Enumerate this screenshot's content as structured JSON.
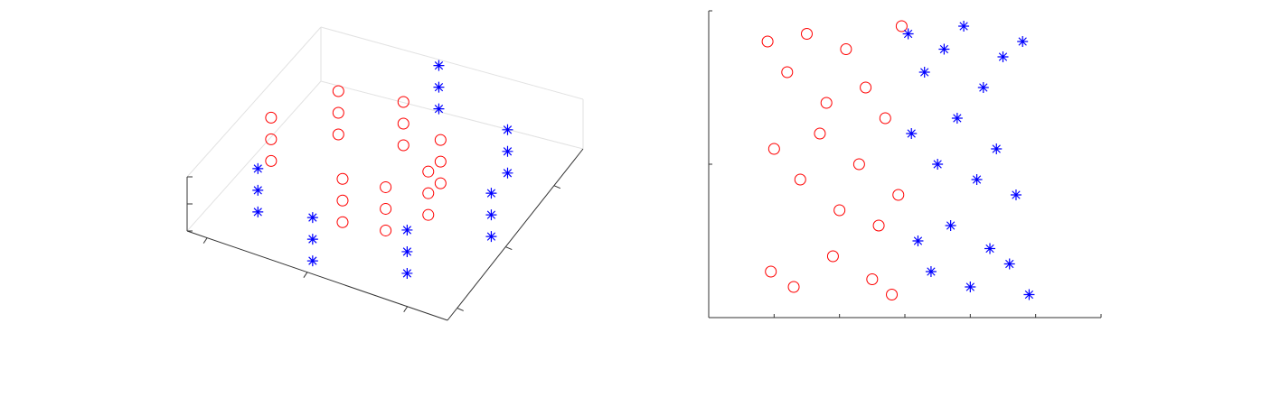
{
  "chart_data": [
    {
      "type": "scatter3d",
      "xlim": [
        -12,
        14
      ],
      "ylim": [
        0,
        20
      ],
      "zlim": [
        -12,
        16
      ],
      "xticks": [
        -10,
        0,
        10
      ],
      "yticks": [
        0,
        10,
        20
      ],
      "zticks": [
        -10,
        0,
        10
      ],
      "grid": true,
      "series": [
        {
          "color": "#ff0000",
          "marker": "o",
          "x": [
            0,
            0,
            0,
            3.9,
            3.9,
            3.9,
            6.28,
            6.28,
            6.28,
            5.28,
            5.28,
            5.28,
            0,
            0,
            0,
            -5.78,
            -5.78,
            -5.78,
            -9.42,
            -9.42,
            -9.42
          ],
          "y": [
            2,
            10,
            18,
            2,
            10,
            18,
            2,
            10,
            18,
            2,
            10,
            18,
            2,
            10,
            18,
            2,
            10,
            18,
            2,
            10,
            18
          ],
          "z": [
            -4.71,
            -4.71,
            -4.71,
            -3.88,
            -3.88,
            -3.88,
            0,
            0,
            0,
            4.6,
            4.6,
            4.6,
            7.85,
            7.85,
            7.85,
            6.37,
            6.37,
            6.37,
            0,
            0,
            0
          ]
        },
        {
          "color": "#0000ff",
          "marker": "*",
          "x": [
            -7.29,
            -7.29,
            -7.29,
            0.05,
            0.05,
            0.05,
            8.25,
            8.25,
            8.25,
            12.57,
            12.57,
            12.57,
            9.91,
            9.91,
            9.91,
            0.52,
            0.52,
            0.52
          ],
          "y": [
            2,
            10,
            18,
            2,
            10,
            18,
            2,
            10,
            18,
            2,
            10,
            18,
            2,
            10,
            18,
            2,
            10,
            18
          ],
          "z": [
            -7.13,
            -7.13,
            -7.13,
            -11,
            -11,
            -11,
            -8.44,
            -8.44,
            -8.44,
            0,
            0,
            0,
            8.87,
            8.87,
            8.87,
            14.09,
            14.09,
            14.09
          ]
        }
      ]
    },
    {
      "type": "scatter",
      "xlim": [
        0,
        6
      ],
      "ylim": [
        0,
        2
      ],
      "xticks": [
        0,
        1,
        2,
        3,
        4,
        5,
        6
      ],
      "yticks": [
        0,
        1,
        2
      ],
      "series": [
        {
          "color": "#ff0000",
          "marker": "o",
          "x": [
            0.9,
            1.2,
            1.5,
            1.8,
            2.1,
            2.4,
            2.7,
            2.95,
            1.0,
            1.4,
            1.7,
            2.0,
            2.3,
            2.6,
            2.9,
            0.95,
            1.3,
            1.9,
            2.5,
            2.8
          ],
          "y": [
            1.8,
            1.6,
            1.85,
            1.4,
            1.75,
            1.5,
            1.3,
            1.9,
            1.1,
            0.9,
            1.2,
            0.7,
            1.0,
            0.6,
            0.8,
            0.3,
            0.2,
            0.4,
            0.25,
            0.15
          ]
        },
        {
          "color": "#0000ff",
          "marker": "*",
          "x": [
            3.05,
            3.3,
            3.6,
            3.9,
            4.2,
            4.5,
            4.8,
            3.1,
            3.5,
            3.8,
            4.1,
            4.4,
            4.7,
            3.2,
            3.4,
            3.7,
            4.0,
            4.3,
            4.6,
            4.9
          ],
          "y": [
            1.85,
            1.6,
            1.75,
            1.9,
            1.5,
            1.7,
            1.8,
            1.2,
            1.0,
            1.3,
            0.9,
            1.1,
            0.8,
            0.5,
            0.3,
            0.6,
            0.2,
            0.45,
            0.35,
            0.15
          ]
        }
      ]
    }
  ]
}
